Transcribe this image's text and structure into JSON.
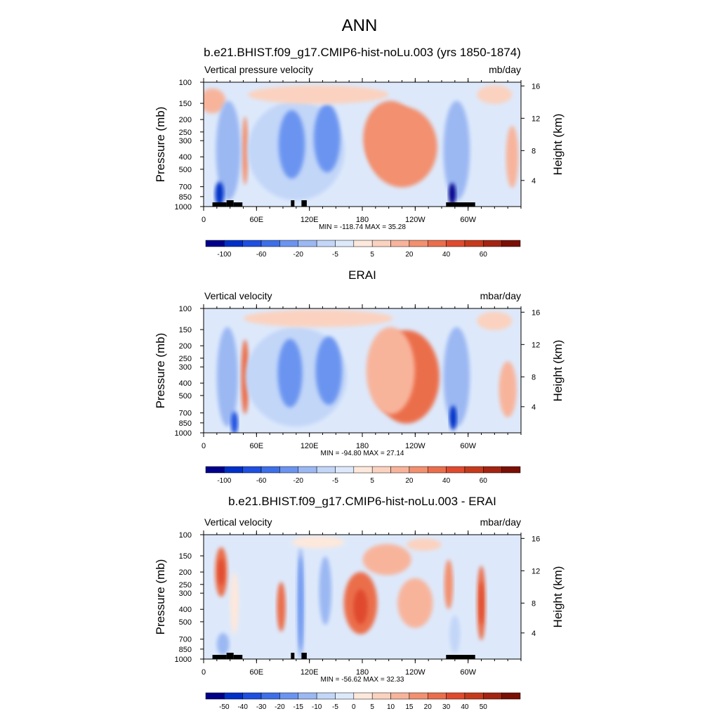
{
  "figure": {
    "title": "ANN",
    "subtitle": "b.e21.BHIST.f09_g17.CMIP6-hist-noLu.003 (yrs 1850-1874)"
  },
  "chart_data": [
    {
      "type": "heatmap",
      "title": "b.e21.BHIST.f09_g17.CMIP6-hist-noLu.003 (yrs 1850-1874)",
      "left_label": "Vertical pressure velocity",
      "units": "mb/day",
      "ylabel": "Pressure (mb)",
      "ylabel_right": "Height (km)",
      "x_ticks": [
        "0",
        "60E",
        "120E",
        "180",
        "120W",
        "60W"
      ],
      "y_ticks": [
        "100",
        "150",
        "200",
        "250",
        "300",
        "400",
        "500",
        "700",
        "850",
        "1000"
      ],
      "y2_ticks": [
        "16",
        "12",
        "8",
        "4"
      ],
      "xlim": [
        0,
        360
      ],
      "ylim": [
        1000,
        100
      ],
      "stats": "MIN = -118.74  MAX =  35.28",
      "colorbar_labels": [
        "-100",
        "-60",
        "-20",
        "-5",
        "5",
        "20",
        "40",
        "60"
      ],
      "colorbar_colors": [
        "#00008b",
        "#0030c8",
        "#1f4fe0",
        "#3d6fe8",
        "#6b94f0",
        "#9bb8f3",
        "#c2d6f8",
        "#dde9fb",
        "#fde8dc",
        "#fbd2bf",
        "#f8b49b",
        "#f29070",
        "#eb6e4c",
        "#e04a2f",
        "#c63a1c",
        "#a32411",
        "#7a0f04"
      ],
      "ground": [
        [
          10,
          26
        ],
        [
          26,
          34
        ],
        [
          34,
          44
        ],
        [
          99,
          103
        ],
        [
          111,
          117
        ],
        [
          275,
          308
        ]
      ],
      "blobs": [
        {
          "lon": 230,
          "lat": 0.47,
          "w": 42,
          "h": 0.3,
          "value": 20
        },
        {
          "lon": 225,
          "lat": 0.52,
          "w": 80,
          "h": 0.65,
          "value": 8
        },
        {
          "lon": 212,
          "lat": 0.45,
          "w": 62,
          "h": 0.6,
          "value": 6
        },
        {
          "lon": 47,
          "lat": 0.55,
          "w": 7,
          "h": 0.55,
          "value": 10
        },
        {
          "lon": 350,
          "lat": 0.6,
          "w": 14,
          "h": 0.5,
          "value": 4
        },
        {
          "lon": 10,
          "lat": 0.15,
          "w": 30,
          "h": 0.2,
          "value": 3
        },
        {
          "lon": 105,
          "lat": 0.55,
          "w": 110,
          "h": 0.8,
          "value": -20
        },
        {
          "lon": 100,
          "lat": 0.5,
          "w": 30,
          "h": 0.55,
          "value": -55
        },
        {
          "lon": 140,
          "lat": 0.45,
          "w": 30,
          "h": 0.55,
          "value": -55
        },
        {
          "lon": 28,
          "lat": 0.55,
          "w": 28,
          "h": 0.8,
          "value": -40
        },
        {
          "lon": 18,
          "lat": 0.9,
          "w": 10,
          "h": 0.2,
          "value": -95
        },
        {
          "lon": 287,
          "lat": 0.55,
          "w": 30,
          "h": 0.8,
          "value": -40
        },
        {
          "lon": 282,
          "lat": 0.9,
          "w": 8,
          "h": 0.18,
          "value": -110
        },
        {
          "lon": 320,
          "lat": 0.65,
          "w": 25,
          "h": 0.55,
          "value": -15
        },
        {
          "lon": 130,
          "lat": 0.1,
          "w": 160,
          "h": 0.15,
          "value": -3
        },
        {
          "lon": 330,
          "lat": 0.1,
          "w": 40,
          "h": 0.15,
          "value": -3
        }
      ]
    },
    {
      "type": "heatmap",
      "title": "ERAI",
      "left_label": "Vertical velocity",
      "units": "mbar/day",
      "ylabel": "Pressure (mb)",
      "ylabel_right": "Height (km)",
      "x_ticks": [
        "0",
        "60E",
        "120E",
        "180",
        "120W",
        "60W"
      ],
      "y_ticks": [
        "100",
        "150",
        "200",
        "250",
        "300",
        "400",
        "500",
        "700",
        "850",
        "1000"
      ],
      "y2_ticks": [
        "16",
        "12",
        "8",
        "4"
      ],
      "xlim": [
        0,
        360
      ],
      "ylim": [
        1000,
        100
      ],
      "stats": "MIN = -94.80  MAX =  27.14",
      "colorbar_labels": [
        "-100",
        "-60",
        "-20",
        "-5",
        "5",
        "20",
        "40",
        "60"
      ],
      "colorbar_colors": [
        "#00008b",
        "#0030c8",
        "#1f4fe0",
        "#3d6fe8",
        "#6b94f0",
        "#9bb8f3",
        "#c2d6f8",
        "#dde9fb",
        "#fde8dc",
        "#fbd2bf",
        "#f8b49b",
        "#f29070",
        "#eb6e4c",
        "#e04a2f",
        "#c63a1c",
        "#a32411",
        "#7a0f04"
      ],
      "ground": [],
      "blobs": [
        {
          "lon": 230,
          "lat": 0.55,
          "w": 75,
          "h": 0.75,
          "value": 12
        },
        {
          "lon": 212,
          "lat": 0.5,
          "w": 55,
          "h": 0.7,
          "value": 5
        },
        {
          "lon": 47,
          "lat": 0.55,
          "w": 9,
          "h": 0.6,
          "value": 12
        },
        {
          "lon": 345,
          "lat": 0.65,
          "w": 20,
          "h": 0.45,
          "value": 3
        },
        {
          "lon": 105,
          "lat": 0.55,
          "w": 115,
          "h": 0.8,
          "value": -20
        },
        {
          "lon": 98,
          "lat": 0.52,
          "w": 28,
          "h": 0.55,
          "value": -45
        },
        {
          "lon": 142,
          "lat": 0.5,
          "w": 30,
          "h": 0.55,
          "value": -45
        },
        {
          "lon": 27,
          "lat": 0.55,
          "w": 24,
          "h": 0.8,
          "value": -38
        },
        {
          "lon": 35,
          "lat": 0.92,
          "w": 8,
          "h": 0.18,
          "value": -80
        },
        {
          "lon": 287,
          "lat": 0.55,
          "w": 30,
          "h": 0.8,
          "value": -38
        },
        {
          "lon": 283,
          "lat": 0.88,
          "w": 8,
          "h": 0.2,
          "value": -90
        },
        {
          "lon": 318,
          "lat": 0.68,
          "w": 22,
          "h": 0.5,
          "value": -15
        },
        {
          "lon": 130,
          "lat": 0.08,
          "w": 170,
          "h": 0.14,
          "value": -3
        },
        {
          "lon": 330,
          "lat": 0.1,
          "w": 40,
          "h": 0.15,
          "value": -3
        }
      ]
    },
    {
      "type": "heatmap",
      "title": "b.e21.BHIST.f09_g17.CMIP6-hist-noLu.003 - ERAI",
      "left_label": "Vertical velocity",
      "units": "mbar/day",
      "ylabel": "Pressure (mb)",
      "ylabel_right": "Height (km)",
      "x_ticks": [
        "0",
        "60E",
        "120E",
        "180",
        "120W",
        "60W"
      ],
      "y_ticks": [
        "100",
        "150",
        "200",
        "250",
        "300",
        "400",
        "500",
        "700",
        "850",
        "1000"
      ],
      "y2_ticks": [
        "16",
        "12",
        "8",
        "4"
      ],
      "xlim": [
        0,
        360
      ],
      "ylim": [
        1000,
        100
      ],
      "stats": "MIN = -56.62  MAX = 32.33",
      "colorbar_labels": [
        "-50",
        "-40",
        "-30",
        "-20",
        "-15",
        "-10",
        "-5",
        "0",
        "5",
        "10",
        "15",
        "20",
        "30",
        "40",
        "50"
      ],
      "colorbar_colors": [
        "#00008b",
        "#0030c8",
        "#1f4fe0",
        "#3d6fe8",
        "#6b94f0",
        "#9bb8f3",
        "#c2d6f8",
        "#dde9fb",
        "#fde8dc",
        "#fbd2bf",
        "#f8b49b",
        "#f29070",
        "#eb6e4c",
        "#e04a2f",
        "#c63a1c",
        "#a32411",
        "#7a0f04"
      ],
      "ground": [
        [
          10,
          26
        ],
        [
          26,
          34
        ],
        [
          34,
          44
        ],
        [
          99,
          103
        ],
        [
          111,
          117
        ],
        [
          275,
          308
        ]
      ],
      "blobs": [
        {
          "lon": 20,
          "lat": 0.3,
          "w": 14,
          "h": 0.4,
          "value": 14
        },
        {
          "lon": 20,
          "lat": 0.3,
          "w": 7,
          "h": 0.22,
          "value": 24
        },
        {
          "lon": 88,
          "lat": 0.58,
          "w": 10,
          "h": 0.4,
          "value": 16
        },
        {
          "lon": 178,
          "lat": 0.55,
          "w": 38,
          "h": 0.5,
          "value": 18
        },
        {
          "lon": 178,
          "lat": 0.58,
          "w": 16,
          "h": 0.28,
          "value": 28
        },
        {
          "lon": 315,
          "lat": 0.55,
          "w": 10,
          "h": 0.6,
          "value": 16
        },
        {
          "lon": 315,
          "lat": 0.55,
          "w": 5,
          "h": 0.35,
          "value": 28
        },
        {
          "lon": 278,
          "lat": 0.4,
          "w": 10,
          "h": 0.4,
          "value": 8
        },
        {
          "lon": 208,
          "lat": 0.2,
          "w": 55,
          "h": 0.25,
          "value": 4
        },
        {
          "lon": 240,
          "lat": 0.55,
          "w": 40,
          "h": 0.4,
          "value": 3
        },
        {
          "lon": 110,
          "lat": 0.55,
          "w": 9,
          "h": 0.9,
          "value": -38
        },
        {
          "lon": 110,
          "lat": 0.55,
          "w": 5,
          "h": 0.75,
          "value": -50
        },
        {
          "lon": 138,
          "lat": 0.45,
          "w": 14,
          "h": 0.55,
          "value": -30
        },
        {
          "lon": 60,
          "lat": 0.6,
          "w": 18,
          "h": 0.4,
          "value": -10
        },
        {
          "lon": 35,
          "lat": 0.55,
          "w": 10,
          "h": 0.5,
          "value": -8
        },
        {
          "lon": 22,
          "lat": 0.88,
          "w": 14,
          "h": 0.18,
          "value": -30
        },
        {
          "lon": 285,
          "lat": 0.8,
          "w": 12,
          "h": 0.3,
          "value": -25
        },
        {
          "lon": 300,
          "lat": 0.65,
          "w": 10,
          "h": 0.4,
          "value": -10
        },
        {
          "lon": 130,
          "lat": 0.06,
          "w": 60,
          "h": 0.1,
          "value": -8
        },
        {
          "lon": 250,
          "lat": 0.08,
          "w": 40,
          "h": 0.1,
          "value": -4
        }
      ]
    }
  ]
}
